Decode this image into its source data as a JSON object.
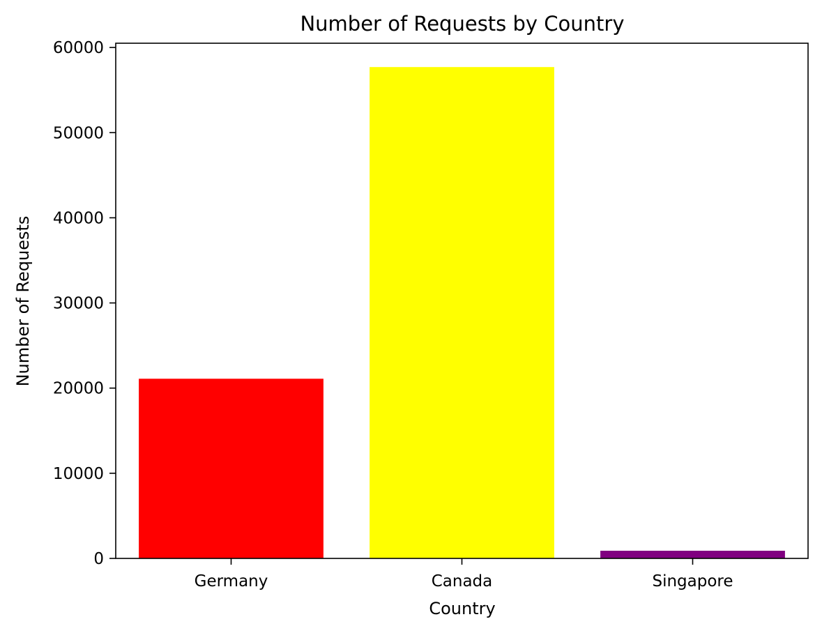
{
  "chart_data": {
    "type": "bar",
    "title": "Number of Requests by Country",
    "xlabel": "Country",
    "ylabel": "Number of Requests",
    "categories": [
      "Germany",
      "Canada",
      "Singapore"
    ],
    "values": [
      21100,
      57700,
      900
    ],
    "colors": [
      "#ff0000",
      "#ffff00",
      "#800080"
    ],
    "ylim": [
      0,
      60500
    ],
    "yticks": [
      0,
      10000,
      20000,
      30000,
      40000,
      50000,
      60000
    ],
    "grid": false,
    "legend": "none"
  }
}
